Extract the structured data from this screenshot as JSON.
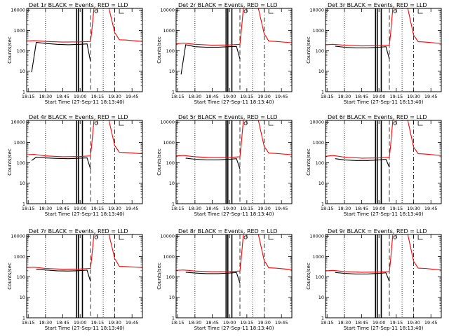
{
  "colors": {
    "events": "#000000",
    "lld": "#ff0000",
    "background": "#ffffff"
  },
  "chart_data": [
    {
      "type": "line",
      "title": "Det 1r BLACK = Events, RED = LLD",
      "xlabel": "Start Time (27-Sep-11 18:13:40)",
      "ylabel": "Counts/sec",
      "x_tick_labels": [
        "18:15",
        "18:30",
        "18:45",
        "19:00",
        "19:15",
        "19:30",
        "19:45"
      ],
      "y_tick_labels": [
        "1",
        "10",
        "100",
        "1000",
        "10000"
      ],
      "yscale": "log",
      "ylim": [
        1,
        12000
      ],
      "xlim": [
        "18:13:40",
        "19:54"
      ],
      "grid": false,
      "series": [
        {
          "name": "Events",
          "color": "#000000",
          "x": [
            "18:18",
            "18:22",
            "18:30",
            "18:40",
            "18:50",
            "18:55",
            "19:00",
            "19:06",
            "19:09"
          ],
          "y": [
            9,
            260,
            230,
            210,
            200,
            205,
            210,
            220,
            30
          ]
        },
        {
          "name": "LLD",
          "color": "#ff0000",
          "x": [
            "18:13:40",
            "18:20",
            "18:30",
            "18:45",
            "19:00",
            "19:09",
            "19:10",
            "19:12",
            "19:18",
            "19:25",
            "19:30",
            "19:34",
            "19:40",
            "19:50",
            "19:54"
          ],
          "y": [
            300,
            320,
            290,
            270,
            275,
            290,
            800,
            12000,
            12000,
            12000,
            800,
            350,
            340,
            300,
            290
          ]
        }
      ]
    },
    {
      "type": "line",
      "title": "Det 2r BLACK = Events, RED = LLD",
      "xlabel": "Start Time (27-Sep-11 18:13:40)",
      "ylabel": "Counts/sec",
      "x_tick_labels": [
        "18:15",
        "18:30",
        "18:45",
        "19:00",
        "19:15",
        "19:30",
        "19:45"
      ],
      "y_tick_labels": [
        "1",
        "10",
        "100",
        "1000",
        "10000"
      ],
      "yscale": "log",
      "ylim": [
        1,
        12000
      ],
      "xlim": [
        "18:13:40",
        "19:54"
      ],
      "grid": false,
      "series": [
        {
          "name": "Events",
          "color": "#000000",
          "x": [
            "18:18",
            "18:22",
            "18:30",
            "18:40",
            "18:50",
            "18:55",
            "19:00",
            "19:06",
            "19:09"
          ],
          "y": [
            7,
            200,
            160,
            150,
            150,
            155,
            160,
            165,
            40
          ]
        },
        {
          "name": "LLD",
          "color": "#ff0000",
          "x": [
            "18:13:40",
            "18:20",
            "18:30",
            "18:45",
            "19:00",
            "19:09",
            "19:10",
            "19:12",
            "19:18",
            "19:25",
            "19:30",
            "19:34",
            "19:40",
            "19:50",
            "19:54"
          ],
          "y": [
            220,
            240,
            210,
            190,
            195,
            210,
            700,
            12000,
            12000,
            12000,
            700,
            300,
            290,
            260,
            250
          ]
        }
      ]
    },
    {
      "type": "line",
      "title": "Det 3r BLACK = Events, RED = LLD",
      "xlabel": "Start Time (27-Sep-11 18:13:40)",
      "ylabel": "Counts/sec",
      "x_tick_labels": [
        "18:15",
        "18:30",
        "18:45",
        "19:00",
        "19:15",
        "19:30",
        "19:45"
      ],
      "y_tick_labels": [
        "1",
        "10",
        "100",
        "1000",
        "10000"
      ],
      "yscale": "log",
      "ylim": [
        1,
        12000
      ],
      "xlim": [
        "18:13:40",
        "19:54"
      ],
      "grid": false,
      "series": [
        {
          "name": "Events",
          "color": "#000000",
          "x": [
            "18:22",
            "18:30",
            "18:40",
            "18:50",
            "18:55",
            "19:00",
            "19:06",
            "19:09"
          ],
          "y": [
            170,
            150,
            140,
            140,
            145,
            150,
            160,
            40
          ]
        },
        {
          "name": "LLD",
          "color": "#ff0000",
          "x": [
            "18:13:40",
            "18:20",
            "18:30",
            "18:45",
            "19:00",
            "19:09",
            "19:10",
            "19:12",
            "19:18",
            "19:25",
            "19:30",
            "19:34",
            "19:40",
            "19:50",
            "19:54"
          ],
          "y": [
            200,
            210,
            190,
            175,
            180,
            190,
            600,
            12000,
            12000,
            12000,
            600,
            280,
            270,
            240,
            230
          ]
        }
      ]
    },
    {
      "type": "line",
      "title": "Det 4r BLACK = Events, RED = LLD",
      "xlabel": "Start Time (27-Sep-11 18:13:40)",
      "ylabel": "Counts/sec",
      "x_tick_labels": [
        "18:15",
        "18:30",
        "18:45",
        "19:00",
        "19:15",
        "19:30",
        "19:45"
      ],
      "y_tick_labels": [
        "1",
        "10",
        "100",
        "1000",
        "10000"
      ],
      "yscale": "log",
      "ylim": [
        1,
        12000
      ],
      "xlim": [
        "18:13:40",
        "19:54"
      ],
      "grid": false,
      "series": [
        {
          "name": "Events",
          "color": "#000000",
          "x": [
            "18:18",
            "18:22",
            "18:30",
            "18:40",
            "18:50",
            "18:55",
            "19:00",
            "19:06",
            "19:09"
          ],
          "y": [
            130,
            190,
            175,
            165,
            160,
            165,
            170,
            175,
            50
          ]
        },
        {
          "name": "LLD",
          "color": "#ff0000",
          "x": [
            "18:13:40",
            "18:20",
            "18:30",
            "18:45",
            "19:00",
            "19:09",
            "19:10",
            "19:12",
            "19:18",
            "19:25",
            "19:30",
            "19:34",
            "19:40",
            "19:50",
            "19:54"
          ],
          "y": [
            250,
            260,
            220,
            200,
            205,
            220,
            700,
            12000,
            12000,
            12000,
            700,
            330,
            320,
            290,
            280
          ]
        }
      ]
    },
    {
      "type": "line",
      "title": "Det 5r BLACK = Events, RED = LLD",
      "xlabel": "Start Time (27-Sep-11 18:13:40)",
      "ylabel": "Counts/sec",
      "x_tick_labels": [
        "18:15",
        "18:30",
        "18:45",
        "19:00",
        "19:15",
        "19:30",
        "19:45"
      ],
      "y_tick_labels": [
        "1",
        "10",
        "100",
        "1000",
        "10000"
      ],
      "yscale": "log",
      "ylim": [
        1,
        12000
      ],
      "xlim": [
        "18:13:40",
        "19:54"
      ],
      "grid": false,
      "series": [
        {
          "name": "Events",
          "color": "#000000",
          "x": [
            "18:22",
            "18:30",
            "18:40",
            "18:50",
            "18:55",
            "19:00",
            "19:06",
            "19:09"
          ],
          "y": [
            170,
            150,
            140,
            140,
            145,
            150,
            160,
            50
          ]
        },
        {
          "name": "LLD",
          "color": "#ff0000",
          "x": [
            "18:13:40",
            "18:20",
            "18:30",
            "18:45",
            "19:00",
            "19:09",
            "19:10",
            "19:12",
            "19:18",
            "19:25",
            "19:30",
            "19:34",
            "19:40",
            "19:50",
            "19:54"
          ],
          "y": [
            220,
            230,
            200,
            180,
            185,
            200,
            650,
            12000,
            12000,
            12000,
            650,
            300,
            290,
            260,
            250
          ]
        }
      ]
    },
    {
      "type": "line",
      "title": "Det 6r BLACK = Events, RED = LLD",
      "xlabel": "Start Time (27-Sep-11 18:13:40)",
      "ylabel": "Counts/sec",
      "x_tick_labels": [
        "18:15",
        "18:30",
        "18:45",
        "19:00",
        "19:15",
        "19:30",
        "19:45"
      ],
      "y_tick_labels": [
        "1",
        "10",
        "100",
        "1000",
        "10000"
      ],
      "yscale": "log",
      "ylim": [
        1,
        12000
      ],
      "xlim": [
        "18:13:40",
        "19:54"
      ],
      "grid": false,
      "series": [
        {
          "name": "Events",
          "color": "#000000",
          "x": [
            "18:22",
            "18:30",
            "18:40",
            "18:50",
            "18:55",
            "19:00",
            "19:06",
            "19:09"
          ],
          "y": [
            160,
            140,
            130,
            130,
            135,
            140,
            150,
            60
          ]
        },
        {
          "name": "LLD",
          "color": "#ff0000",
          "x": [
            "18:13:40",
            "18:20",
            "18:30",
            "18:45",
            "19:00",
            "19:09",
            "19:10",
            "19:12",
            "19:18",
            "19:25",
            "19:30",
            "19:34",
            "19:40",
            "19:50",
            "19:54"
          ],
          "y": [
            210,
            230,
            190,
            170,
            175,
            190,
            600,
            12000,
            12000,
            12000,
            600,
            280,
            270,
            240,
            230
          ]
        }
      ]
    },
    {
      "type": "line",
      "title": "Det 7r BLACK = Events, RED = LLD",
      "xlabel": "Start Time (27-Sep-11 18:13:40)",
      "ylabel": "Counts/sec",
      "x_tick_labels": [
        "18:15",
        "18:30",
        "18:45",
        "19:00",
        "19:15",
        "19:30",
        "19:45"
      ],
      "y_tick_labels": [
        "1",
        "10",
        "100",
        "1000",
        "10000"
      ],
      "yscale": "log",
      "ylim": [
        1,
        12000
      ],
      "xlim": [
        "18:13:40",
        "19:54"
      ],
      "grid": false,
      "series": [
        {
          "name": "Events",
          "color": "#000000",
          "x": [
            "18:22",
            "18:30",
            "18:40",
            "18:50",
            "18:55",
            "19:00",
            "19:06",
            "19:09"
          ],
          "y": [
            240,
            220,
            200,
            195,
            200,
            205,
            215,
            60
          ]
        },
        {
          "name": "LLD",
          "color": "#ff0000",
          "x": [
            "18:13:40",
            "18:20",
            "18:30",
            "18:45",
            "19:00",
            "19:09",
            "19:10",
            "19:12",
            "19:18",
            "19:25",
            "19:30",
            "19:34",
            "19:40",
            "19:50",
            "19:54"
          ],
          "y": [
            290,
            300,
            260,
            240,
            245,
            260,
            800,
            12000,
            12000,
            12000,
            800,
            330,
            320,
            300,
            290
          ]
        }
      ]
    },
    {
      "type": "line",
      "title": "Det 8r BLACK = Events, RED = LLD",
      "xlabel": "Start Time (27-Sep-11 18:13:40)",
      "ylabel": "Counts/sec",
      "x_tick_labels": [
        "18:15",
        "18:30",
        "18:45",
        "19:00",
        "19:15",
        "19:30",
        "19:45"
      ],
      "y_tick_labels": [
        "1",
        "10",
        "100",
        "1000",
        "10000"
      ],
      "yscale": "log",
      "ylim": [
        1,
        12000
      ],
      "xlim": [
        "18:13:40",
        "19:54"
      ],
      "grid": false,
      "series": [
        {
          "name": "Events",
          "color": "#000000",
          "x": [
            "18:22",
            "18:30",
            "18:40",
            "18:50",
            "18:55",
            "19:00",
            "19:06",
            "19:09"
          ],
          "y": [
            170,
            155,
            145,
            145,
            150,
            155,
            165,
            50
          ]
        },
        {
          "name": "LLD",
          "color": "#ff0000",
          "x": [
            "18:13:40",
            "18:20",
            "18:30",
            "18:45",
            "19:00",
            "19:09",
            "19:10",
            "19:12",
            "19:18",
            "19:25",
            "19:30",
            "19:34",
            "19:40",
            "19:50",
            "19:54"
          ],
          "y": [
            210,
            220,
            195,
            180,
            185,
            195,
            650,
            12000,
            12000,
            12000,
            650,
            280,
            270,
            240,
            230
          ]
        }
      ]
    },
    {
      "type": "line",
      "title": "Det 9r BLACK = Events, RED = LLD",
      "xlabel": "Start Time (27-Sep-11 18:13:40)",
      "ylabel": "Counts/sec",
      "x_tick_labels": [
        "18:15",
        "18:30",
        "18:45",
        "19:00",
        "19:15",
        "19:30",
        "19:45"
      ],
      "y_tick_labels": [
        "1",
        "10",
        "100",
        "1000",
        "10000"
      ],
      "yscale": "log",
      "ylim": [
        1,
        12000
      ],
      "xlim": [
        "18:13:40",
        "19:54"
      ],
      "grid": false,
      "series": [
        {
          "name": "Events",
          "color": "#000000",
          "x": [
            "18:22",
            "18:30",
            "18:40",
            "18:50",
            "18:55",
            "19:00",
            "19:06",
            "19:09"
          ],
          "y": [
            165,
            150,
            140,
            140,
            145,
            150,
            160,
            60
          ]
        },
        {
          "name": "LLD",
          "color": "#ff0000",
          "x": [
            "18:13:40",
            "18:20",
            "18:30",
            "18:45",
            "19:00",
            "19:09",
            "19:10",
            "19:12",
            "19:18",
            "19:25",
            "19:30",
            "19:34",
            "19:40",
            "19:50",
            "19:54"
          ],
          "y": [
            200,
            210,
            185,
            170,
            175,
            185,
            600,
            12000,
            12000,
            12000,
            600,
            270,
            260,
            230,
            220
          ]
        }
      ]
    }
  ]
}
